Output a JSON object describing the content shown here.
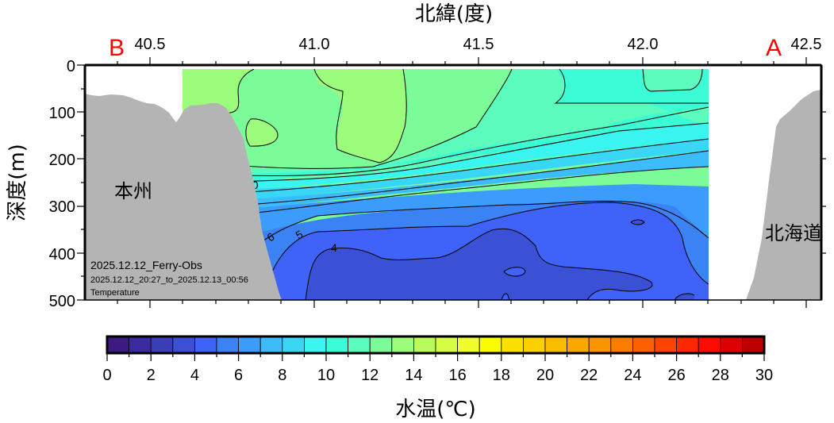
{
  "chart_data": {
    "type": "heatmap",
    "subtype": "filled-contour-section",
    "title": "",
    "xlabel": "北緯(度)",
    "ylabel": "深度(m)",
    "x_ticks": [
      "40.5",
      "41.0",
      "41.5",
      "42.0",
      "42.5"
    ],
    "x_range": [
      40.3,
      42.55
    ],
    "y_ticks": [
      "0",
      "100",
      "200",
      "300",
      "400",
      "500"
    ],
    "y_range": [
      0,
      500
    ],
    "y_inverted": true,
    "section_markers": {
      "left": "B",
      "right": "A"
    },
    "land_labels": {
      "left": "本州",
      "right": "北海道"
    },
    "info": {
      "line1": "2025.12.12_Ferry-Obs",
      "line2": "2025.12.12_20:27_to_2025.12.13_00:56",
      "line3": "Temperature"
    },
    "contour_labels": [
      "10",
      "9",
      "6",
      "5",
      "4"
    ],
    "contour_interval": 1,
    "colorbar": {
      "label": "水温(℃)",
      "min": 0,
      "max": 30,
      "step": 1,
      "tick_labels": [
        "0",
        "2",
        "4",
        "6",
        "8",
        "10",
        "12",
        "14",
        "16",
        "18",
        "20",
        "22",
        "24",
        "26",
        "28",
        "30"
      ],
      "colors": [
        "#3b1b82",
        "#3a2ca0",
        "#3a3fb8",
        "#3b50d5",
        "#3f62f8",
        "#3b82f5",
        "#3b9cfb",
        "#3cbcfb",
        "#3ad6f5",
        "#3cf4f0",
        "#3cfcd6",
        "#5cfcbc",
        "#7cfc98",
        "#9cfc7c",
        "#b8fc5c",
        "#d6fc44",
        "#eefc30",
        "#fcfc00",
        "#fce000",
        "#fcd000",
        "#fcbc00",
        "#fca800",
        "#fc9400",
        "#fc7c00",
        "#fc6000",
        "#fc4400",
        "#fc2800",
        "#fc0c00",
        "#dc0000",
        "#bc0000"
      ]
    },
    "temperature_summary": {
      "surface_0_150m": "13-15 °C",
      "thermocline_200_300m": "7-12 °C",
      "deep_350_500m": "3-5 °C"
    }
  }
}
